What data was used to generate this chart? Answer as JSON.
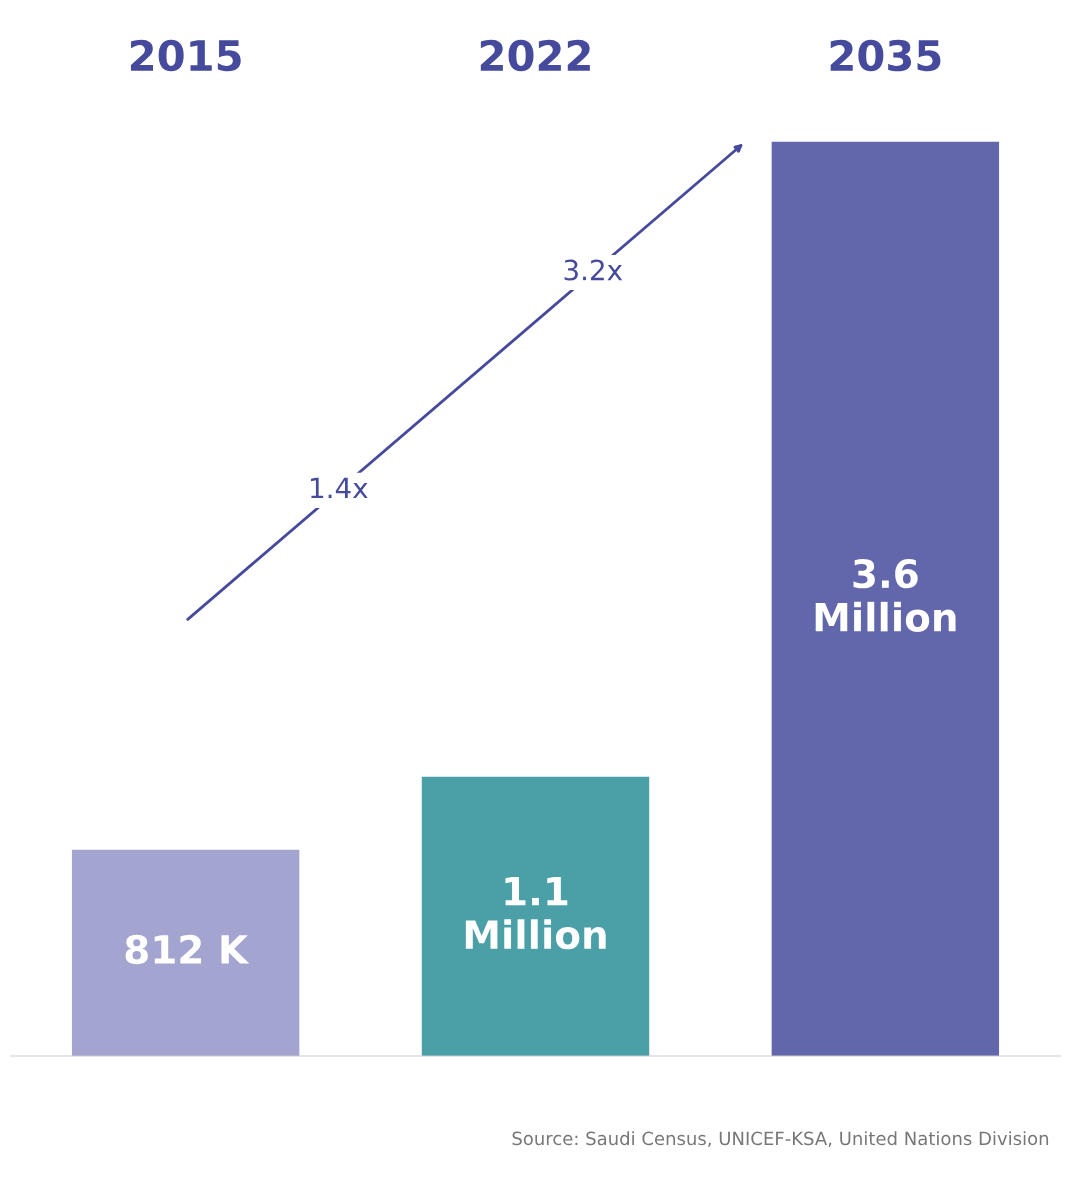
{
  "chart_data": {
    "type": "bar",
    "categories": [
      "2015",
      "2022",
      "2035"
    ],
    "values": [
      0.812,
      1.1,
      3.6
    ],
    "colors": [
      "#a3a5d0",
      "#4b9fa7",
      "#6266ab"
    ],
    "value_labels": [
      "812 K",
      "1.1\nMillion",
      "3.6\nMillion"
    ],
    "annotations": [
      "1.4x",
      "3.2x",
      "Source: Saudi Census, UNICEF-KSA, United Nations Division"
    ],
    "grid": false,
    "legend": false
  }
}
